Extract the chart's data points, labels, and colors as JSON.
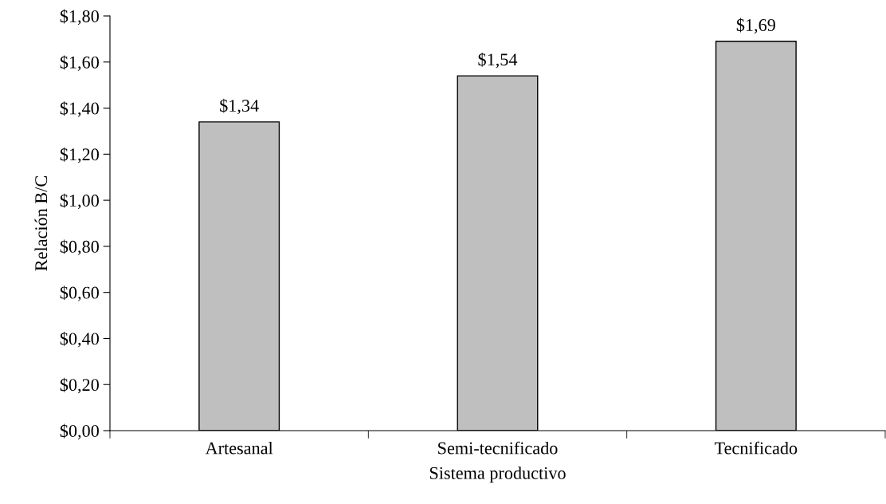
{
  "chart_data": {
    "type": "bar",
    "xlabel": "Sistema productivo",
    "ylabel": "Relación B/C",
    "categories": [
      "Artesanal",
      "Semi-tecnificado",
      "Tecnificado"
    ],
    "values": [
      1.34,
      1.54,
      1.69
    ],
    "color": "#bfbfbf",
    "value_labels": [
      "$1,34",
      "$1,54",
      "$1,69"
    ],
    "ylim": [
      0,
      1.8
    ],
    "yticks": [
      {
        "value": 0,
        "label": "$0,00"
      },
      {
        "value": 0.2,
        "label": "$0,20"
      },
      {
        "value": 0.4,
        "label": "$0,40"
      },
      {
        "value": 0.6,
        "label": "$0,60"
      },
      {
        "value": 0.8,
        "label": "$0,80"
      },
      {
        "value": 1.0,
        "label": "$1,00"
      },
      {
        "value": 1.2,
        "label": "$1,20"
      },
      {
        "value": 1.4,
        "label": "$1,40"
      },
      {
        "value": 1.6,
        "label": "$1,60"
      },
      {
        "value": 1.8,
        "label": "$1,80"
      }
    ],
    "grid": false,
    "legend": false
  }
}
